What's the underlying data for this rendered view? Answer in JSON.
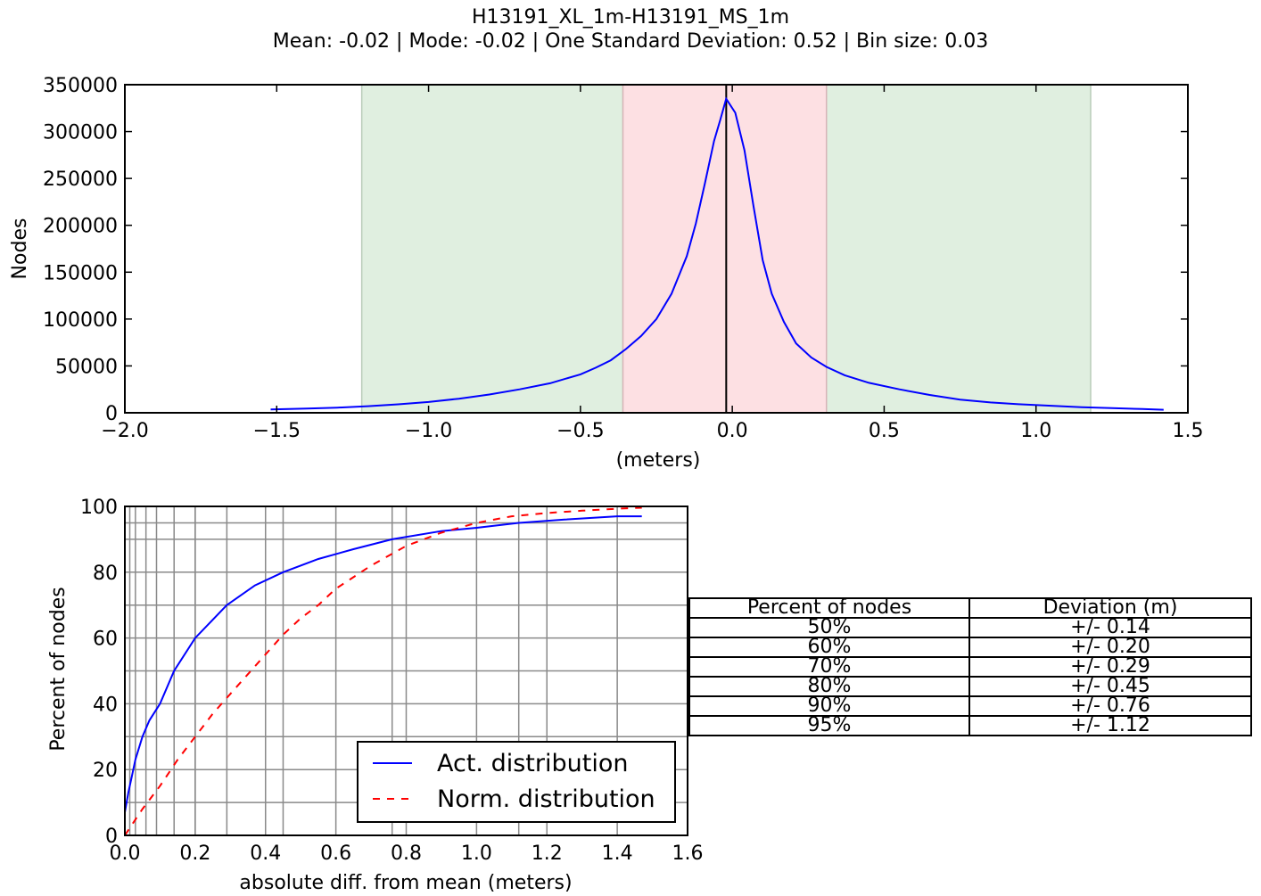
{
  "figure": {
    "title": "H13191_XL_1m-H13191_MS_1m",
    "subtitle": "Mean: -0.02 | Mode: -0.02 | One Standard Deviation: 0.52 | Bin size: 0.03"
  },
  "chart_data": [
    {
      "type": "line",
      "ylabel": "Nodes",
      "xlabel": "(meters)",
      "xlim": [
        -2.0,
        1.5
      ],
      "ylim": [
        0,
        350000
      ],
      "xticks": [
        "−2.0",
        "−1.5",
        "−1.0",
        "−0.5",
        "0.0",
        "0.5",
        "1.0",
        "1.5"
      ],
      "xtick_values": [
        -2.0,
        -1.5,
        -1.0,
        -0.5,
        0.0,
        0.5,
        1.0,
        1.5
      ],
      "yticks": [
        "0",
        "50000",
        "100000",
        "150000",
        "200000",
        "250000",
        "300000",
        "350000"
      ],
      "ytick_values": [
        0,
        50000,
        100000,
        150000,
        200000,
        250000,
        300000,
        350000
      ],
      "grid": false,
      "bands": [
        {
          "from": -1.22,
          "to": -0.36,
          "color": "#e0efe0",
          "edge": "#b9ccb9"
        },
        {
          "from": 0.31,
          "to": 1.18,
          "color": "#e0efe0",
          "edge": "#b9ccb9"
        },
        {
          "from": -0.36,
          "to": 0.31,
          "color": "#fde0e3",
          "edge": "#d8b4b8"
        }
      ],
      "vline": {
        "x": -0.02,
        "color": "#000000"
      },
      "series": [
        {
          "color": "#0000ff",
          "x": [
            -1.52,
            -1.4,
            -1.3,
            -1.2,
            -1.1,
            -1.0,
            -0.9,
            -0.8,
            -0.7,
            -0.6,
            -0.5,
            -0.45,
            -0.4,
            -0.35,
            -0.3,
            -0.25,
            -0.2,
            -0.15,
            -0.12,
            -0.09,
            -0.06,
            -0.04,
            -0.02,
            0.01,
            0.04,
            0.07,
            0.1,
            0.13,
            0.17,
            0.21,
            0.26,
            0.31,
            0.37,
            0.45,
            0.55,
            0.65,
            0.75,
            0.85,
            0.95,
            1.05,
            1.15,
            1.25,
            1.35,
            1.42
          ],
          "y": [
            3500,
            4500,
            5500,
            7000,
            9000,
            11500,
            15000,
            19500,
            25000,
            31500,
            41000,
            48000,
            56000,
            68000,
            82000,
            100000,
            127000,
            167000,
            202000,
            245000,
            290000,
            312000,
            335000,
            320000,
            280000,
            220000,
            163000,
            127000,
            97000,
            74000,
            59000,
            49000,
            40000,
            32000,
            25000,
            19000,
            14000,
            11000,
            9000,
            7500,
            6000,
            5000,
            4000,
            3200
          ]
        }
      ]
    },
    {
      "type": "line",
      "ylabel": "Percent of nodes",
      "xlabel": "absolute diff. from mean (meters)",
      "xlim": [
        0.0,
        1.6
      ],
      "ylim": [
        0,
        100
      ],
      "xticks": [
        "0.0",
        "0.2",
        "0.4",
        "0.6",
        "0.8",
        "1.0",
        "1.2",
        "1.4",
        "1.6"
      ],
      "xtick_values": [
        0.0,
        0.2,
        0.4,
        0.6,
        0.8,
        1.0,
        1.2,
        1.4,
        1.6
      ],
      "yticks": [
        "0",
        "20",
        "40",
        "60",
        "80",
        "100"
      ],
      "ytick_values": [
        0,
        20,
        40,
        60,
        80,
        100
      ],
      "grid": true,
      "extra_vgrid": [
        0.014,
        0.03,
        0.06,
        0.09,
        0.14,
        0.2,
        0.29,
        0.45,
        0.76,
        1.12
      ],
      "extra_hgrid": [
        10,
        30,
        50,
        70,
        90,
        95
      ],
      "legend": "bottom-right",
      "series": [
        {
          "name": "Act. distribution",
          "color": "#0000ff",
          "dash": "",
          "x": [
            0.0,
            0.01,
            0.02,
            0.03,
            0.05,
            0.07,
            0.1,
            0.14,
            0.2,
            0.29,
            0.37,
            0.45,
            0.55,
            0.65,
            0.76,
            0.9,
            1.0,
            1.12,
            1.25,
            1.4,
            1.47
          ],
          "y": [
            7,
            13,
            18,
            23,
            30,
            35,
            40,
            50,
            60,
            70,
            76,
            80,
            84,
            87,
            90,
            92.5,
            93.5,
            95,
            96,
            97,
            97
          ]
        },
        {
          "name": "Norm. distribution",
          "color": "#ff0000",
          "dash": "8,8",
          "x": [
            0.0,
            0.05,
            0.1,
            0.15,
            0.2,
            0.25,
            0.3,
            0.35,
            0.4,
            0.45,
            0.5,
            0.55,
            0.6,
            0.7,
            0.8,
            0.9,
            1.0,
            1.1,
            1.2,
            1.3,
            1.4,
            1.47
          ],
          "y": [
            0,
            8,
            15,
            23,
            30,
            37,
            43,
            49,
            55,
            61,
            66,
            70,
            75,
            82,
            88,
            92,
            95,
            97,
            98,
            98.7,
            99.3,
            99.6
          ]
        }
      ]
    }
  ],
  "stats_table": {
    "headers": [
      "Percent of nodes",
      "Deviation (m)"
    ],
    "rows": [
      [
        "50%",
        "+/- 0.14"
      ],
      [
        "60%",
        "+/- 0.20"
      ],
      [
        "70%",
        "+/- 0.29"
      ],
      [
        "80%",
        "+/- 0.45"
      ],
      [
        "90%",
        "+/- 0.76"
      ],
      [
        "95%",
        "+/- 1.12"
      ]
    ]
  }
}
